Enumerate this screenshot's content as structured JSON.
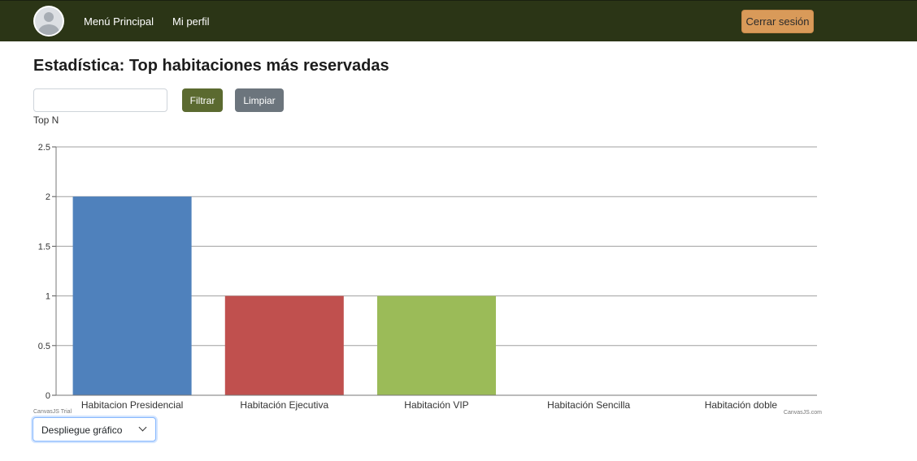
{
  "nav": {
    "main_menu": "Menú Principal",
    "profile": "Mi perfil",
    "logout": "Cerrar sesión"
  },
  "page": {
    "title": "Estadística: Top habitaciones más reservadas"
  },
  "filter": {
    "input_value": "",
    "input_label": "Top N",
    "filter_button": "Filtrar",
    "clear_button": "Limpiar"
  },
  "chart_data": {
    "type": "bar",
    "categories": [
      "Habitacion Presidencial",
      "Habitación Ejecutiva",
      "Habitación VIP",
      "Habitación Sencilla",
      "Habitación doble"
    ],
    "values": [
      2,
      1,
      1,
      0,
      0
    ],
    "colors": [
      "#4f81bc",
      "#c0504e",
      "#9bbb58",
      "#23bfaa",
      "#8064a1"
    ],
    "yticks": [
      "0",
      "0.5",
      "1",
      "1.5",
      "2",
      "2.5"
    ],
    "ylim": [
      0,
      2.5
    ],
    "grid": true,
    "title": "",
    "xlabel": "",
    "ylabel": "",
    "watermark_left": "CanvasJS Trial",
    "watermark_right": "CanvasJS.com"
  },
  "display_select": {
    "selected": "Despliegue gráfico"
  },
  "colors": {
    "navbar": "#2b3516",
    "logout_button": "#d99a59",
    "filter_button": "#5b6a30",
    "clear_button": "#6c757d"
  }
}
